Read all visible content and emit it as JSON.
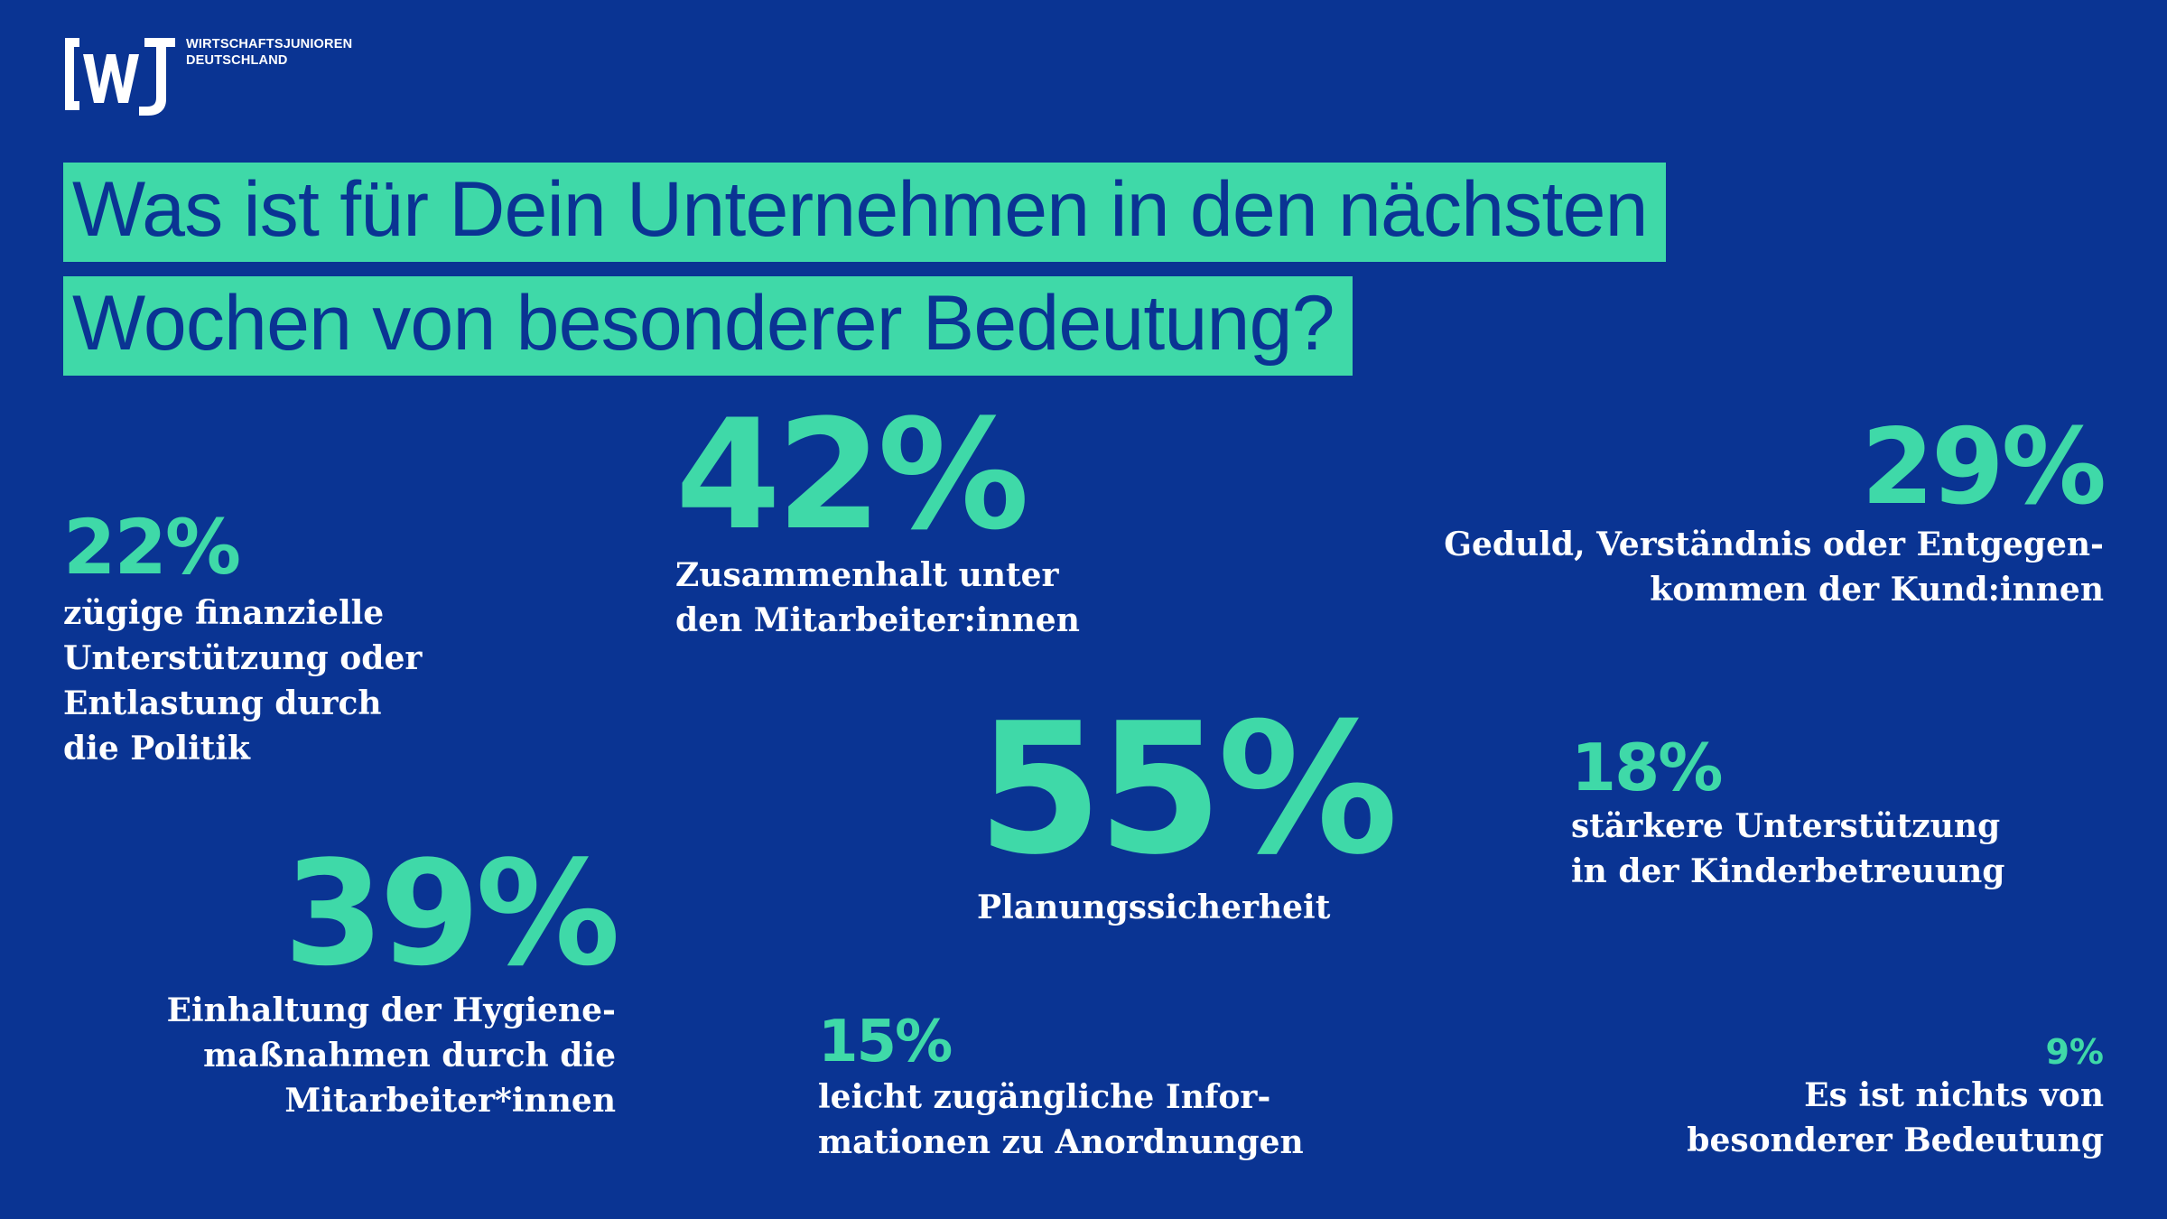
{
  "brand": {
    "logo_mark": "[wJ",
    "name_line1": "WIRTSCHAFTSJUNIOREN",
    "name_line2": "DEUTSCHLAND"
  },
  "headline": {
    "line1": "Was ist für Dein Unternehmen in den nächsten",
    "line2": "Wochen von besonderer Bedeutung?"
  },
  "stats": {
    "s22": {
      "value": "22%",
      "label": "zügige finanzielle\nUnterstützung oder\nEntlastung durch\ndie Politik"
    },
    "s42": {
      "value": "42%",
      "label": "Zusammenhalt unter\nden Mitarbeiter:innen"
    },
    "s29": {
      "value": "29%",
      "label": "Geduld, Verständnis oder Entgegen-\nkommen der Kund:innen"
    },
    "s55": {
      "value": "55%",
      "label": "Planungssicherheit"
    },
    "s18": {
      "value": "18%",
      "label": "stärkere Unterstützung\nin der Kinderbetreuung"
    },
    "s39": {
      "value": "39%",
      "label": "Einhaltung der Hygiene-\nmaßnahmen durch die\nMitarbeiter*innen"
    },
    "s15": {
      "value": "15%",
      "label": "leicht zugängliche Infor-\nmationen zu Anordnungen"
    },
    "s9": {
      "value": "9%",
      "label": "Es ist nichts von\nbesonderer Bedeutung"
    }
  },
  "colors": {
    "background": "#0a3493",
    "accent": "#3fd9a8",
    "text": "#ffffff"
  }
}
